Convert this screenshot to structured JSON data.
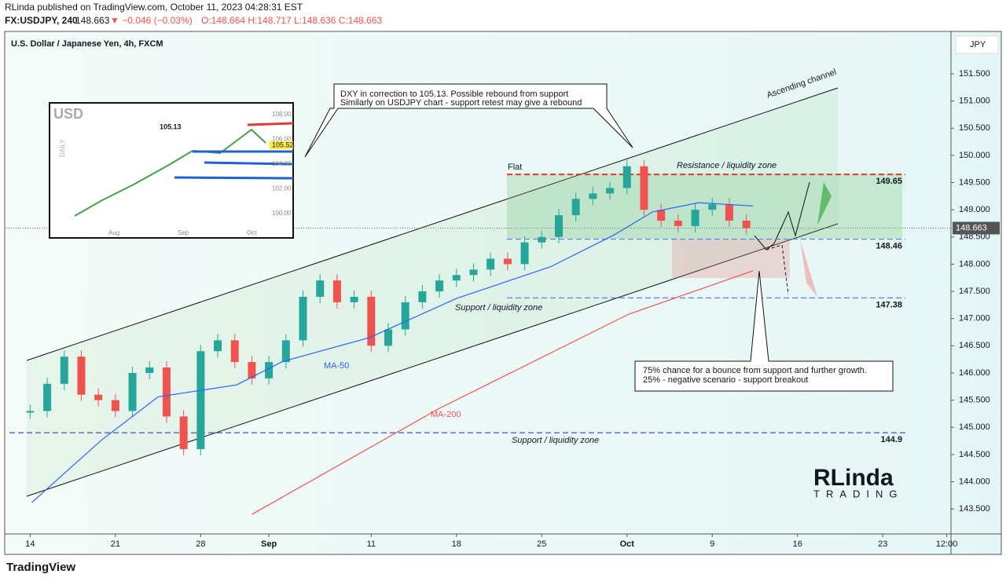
{
  "header": {
    "line1": "RLinda published on TradingView.com, October 11, 2023 04:28:31 EST",
    "symbol": "FX:USDJPY, 240",
    "price": "148.663",
    "change": "▼ −0.046 (−0.03%)",
    "ohlc": "O:148.664 H:148.717 L:148.636 C:148.663"
  },
  "footer": "TradingView",
  "currency": "JPY",
  "inset": {
    "title": "USD",
    "timeframe": "DAILY",
    "note": "105.13",
    "last": "105.52",
    "yticks": [
      "108.00",
      "106.00",
      "104.00",
      "102.00",
      "100.00"
    ],
    "xticks": [
      "Aug",
      "Sep",
      "Oct"
    ]
  },
  "logo": {
    "name": "RLinda",
    "sub": "TRADING"
  },
  "chart_data": {
    "type": "candlestick",
    "title": "U.S. Dollar / Japanese Yen, 4h, FXCM",
    "x": [
      0,
      1,
      2,
      3,
      4,
      5,
      6,
      7,
      8,
      9,
      10,
      11,
      12,
      13,
      14,
      15,
      16,
      17,
      18,
      19,
      20,
      21,
      22,
      23,
      24,
      25,
      26,
      27,
      28,
      29,
      30,
      31,
      32,
      33,
      34,
      35,
      36,
      37,
      38,
      39,
      40,
      41,
      42
    ],
    "series": [
      {
        "color": "#26a69a",
        "down_color": "#ef5350",
        "values": [
          145.3,
          145.8,
          146.3,
          145.6,
          145.5,
          145.3,
          146.0,
          146.1,
          145.2,
          144.6,
          146.4,
          146.6,
          146.2,
          145.9,
          146.2,
          146.6,
          147.4,
          147.7,
          147.3,
          147.4,
          146.5,
          146.8,
          147.3,
          147.5,
          147.7,
          147.8,
          147.9,
          148.1,
          148.0,
          148.4,
          148.5,
          148.9,
          149.2,
          149.3,
          149.4,
          149.8,
          149.0,
          148.8,
          148.7,
          149.0,
          149.1,
          148.8,
          148.663
        ]
      },
      {
        "name": "MA-50",
        "color": "#2962ff",
        "x": [
          0.1,
          4.2,
          7.5,
          12.1,
          14.8,
          19.9,
          25.0,
          30.5,
          34.2,
          36.5,
          39.2,
          42.4
        ],
        "values": [
          143.62,
          144.77,
          145.56,
          145.78,
          146.21,
          146.65,
          147.37,
          147.95,
          148.53,
          148.96,
          149.13,
          149.07
        ]
      },
      {
        "name": "MA-200",
        "color": "#ef5350",
        "x": [
          13.0,
          24.0,
          35.1,
          42.4
        ],
        "values": [
          143.4,
          145.35,
          147.08,
          147.88
        ]
      }
    ],
    "last_price": 148.663,
    "levels": [
      {
        "value": 149.65,
        "color": "#e53935"
      },
      {
        "value": 148.46,
        "color": "#5c7cfa"
      },
      {
        "value": 147.38,
        "color": "#5c7cfa"
      },
      {
        "value": 144.9,
        "color": "#3f51b5"
      }
    ],
    "xlim": [
      -1.4,
      54
    ],
    "ylim": [
      143.04,
      152.25
    ],
    "xticks": [
      {
        "value": 0,
        "label": "14"
      },
      {
        "value": 5,
        "label": "21"
      },
      {
        "value": 10,
        "label": "28"
      },
      {
        "value": 14,
        "label": "Sep"
      },
      {
        "value": 20,
        "label": "11"
      },
      {
        "value": 25,
        "label": "18"
      },
      {
        "value": 30,
        "label": "25"
      },
      {
        "value": 35,
        "label": "Oct"
      },
      {
        "value": 40,
        "label": "9"
      },
      {
        "value": 45,
        "label": "16"
      },
      {
        "value": 50,
        "label": "23"
      },
      {
        "value": 53.75,
        "label": "12:00"
      }
    ],
    "yticks": [
      {
        "value": 143.5,
        "label": "143.500"
      },
      {
        "value": 144,
        "label": "144.000"
      },
      {
        "value": 144.5,
        "label": "144.500"
      },
      {
        "value": 145,
        "label": "145.000"
      },
      {
        "value": 145.5,
        "label": "145.500"
      },
      {
        "value": 146,
        "label": "146.000"
      },
      {
        "value": 146.5,
        "label": "146.500"
      },
      {
        "value": 147,
        "label": "147.000"
      },
      {
        "value": 147.5,
        "label": "147.500"
      },
      {
        "value": 148,
        "label": "148.000"
      },
      {
        "value": 148.5,
        "label": "148.500"
      },
      {
        "value": 149,
        "label": "149.000"
      },
      {
        "value": 149.5,
        "label": "149.500"
      },
      {
        "value": 150,
        "label": "150.000"
      },
      {
        "value": 150.5,
        "label": "150.500"
      },
      {
        "value": 151,
        "label": "151.000"
      },
      {
        "value": 151.5,
        "label": "151.500"
      }
    ],
    "annotations": {
      "dxy1": "DXY in correction to 105.13. Possible rebound from support",
      "dxy2": "Similarly on USDJPY chart - support retest may give a rebound",
      "channel": "Ascending channel",
      "flat": "Flat",
      "resistance": "Resistance / liquidity zone",
      "support1": "Support / liquidity zone",
      "support2": "Support / liquidity zone",
      "scenario1": "75% chance for a bounce from support and further growth.",
      "scenario2": "25% - negative scenario - support breakout"
    }
  }
}
